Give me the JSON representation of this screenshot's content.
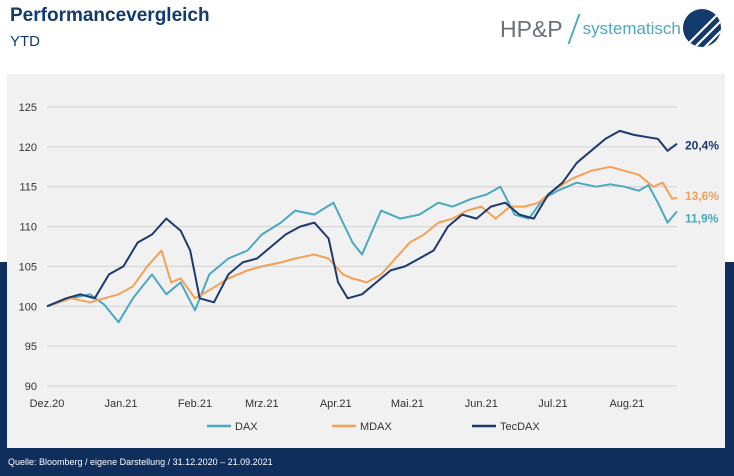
{
  "header": {
    "title": "Performancevergleich",
    "subtitle": "YTD",
    "brand_main": "HP&P",
    "brand_sub": "systematisch"
  },
  "source": "Quelle: Bloomberg / eigene Darstellung / 31.12.2020 – 21.09.2021",
  "colors": {
    "dax": "#4aa8c0",
    "mdax": "#f4a055",
    "tecdax": "#1c3a6e",
    "navy_band": "#0f2e5c",
    "title": "#123a6b"
  },
  "chart_data": {
    "type": "line",
    "ylim": [
      90,
      125
    ],
    "yticks": [
      90,
      95,
      100,
      105,
      110,
      115,
      120,
      125
    ],
    "xlim": [
      0,
      264
    ],
    "xticks": [
      {
        "label": "Dez.20",
        "pos": 0
      },
      {
        "label": "Jan.21",
        "pos": 31
      },
      {
        "label": "Feb.21",
        "pos": 62
      },
      {
        "label": "Mrz.21",
        "pos": 90
      },
      {
        "label": "Apr.21",
        "pos": 121
      },
      {
        "label": "Mai.21",
        "pos": 151
      },
      {
        "label": "Jun.21",
        "pos": 182
      },
      {
        "label": "Jul.21",
        "pos": 212
      },
      {
        "label": "Aug.21",
        "pos": 243
      }
    ],
    "grid": true,
    "legend_position": "bottom",
    "series": [
      {
        "name": "DAX",
        "color": "#4aa8c0",
        "end_label": "11,9%",
        "points": [
          [
            0,
            100
          ],
          [
            10,
            101
          ],
          [
            18,
            101.5
          ],
          [
            24,
            100.2
          ],
          [
            30,
            98
          ],
          [
            36,
            101
          ],
          [
            44,
            104
          ],
          [
            50,
            101.5
          ],
          [
            56,
            103
          ],
          [
            62,
            99.5
          ],
          [
            68,
            104
          ],
          [
            76,
            106
          ],
          [
            84,
            107
          ],
          [
            90,
            109
          ],
          [
            98,
            110.5
          ],
          [
            104,
            112
          ],
          [
            112,
            111.5
          ],
          [
            120,
            113
          ],
          [
            128,
            108
          ],
          [
            132,
            106.5
          ],
          [
            140,
            112
          ],
          [
            148,
            111
          ],
          [
            156,
            111.5
          ],
          [
            164,
            113
          ],
          [
            170,
            112.5
          ],
          [
            178,
            113.5
          ],
          [
            184,
            114
          ],
          [
            190,
            115
          ],
          [
            196,
            111.5
          ],
          [
            202,
            111
          ],
          [
            208,
            113.5
          ],
          [
            214,
            114.5
          ],
          [
            222,
            115.5
          ],
          [
            230,
            115
          ],
          [
            236,
            115.3
          ],
          [
            242,
            115
          ],
          [
            248,
            114.5
          ],
          [
            252,
            115.2
          ],
          [
            256,
            113
          ],
          [
            260,
            110.5
          ],
          [
            264,
            111.9
          ]
        ]
      },
      {
        "name": "MDAX",
        "color": "#f4a055",
        "end_label": "13,6%",
        "points": [
          [
            0,
            100
          ],
          [
            10,
            101
          ],
          [
            18,
            100.5
          ],
          [
            24,
            101
          ],
          [
            30,
            101.5
          ],
          [
            36,
            102.5
          ],
          [
            42,
            105
          ],
          [
            48,
            107
          ],
          [
            52,
            103
          ],
          [
            56,
            103.5
          ],
          [
            62,
            101
          ],
          [
            68,
            102
          ],
          [
            76,
            103.5
          ],
          [
            84,
            104.5
          ],
          [
            90,
            105
          ],
          [
            98,
            105.5
          ],
          [
            104,
            106
          ],
          [
            112,
            106.5
          ],
          [
            118,
            106
          ],
          [
            124,
            104
          ],
          [
            128,
            103.5
          ],
          [
            134,
            103
          ],
          [
            140,
            104
          ],
          [
            146,
            106
          ],
          [
            152,
            108
          ],
          [
            158,
            109
          ],
          [
            164,
            110.5
          ],
          [
            170,
            111
          ],
          [
            176,
            112
          ],
          [
            182,
            112.5
          ],
          [
            188,
            111
          ],
          [
            194,
            112.5
          ],
          [
            200,
            112.5
          ],
          [
            206,
            113
          ],
          [
            212,
            114.5
          ],
          [
            220,
            116
          ],
          [
            228,
            117
          ],
          [
            236,
            117.5
          ],
          [
            242,
            117
          ],
          [
            248,
            116.5
          ],
          [
            254,
            115
          ],
          [
            258,
            115.5
          ],
          [
            262,
            113.5
          ],
          [
            264,
            113.6
          ]
        ]
      },
      {
        "name": "TecDAX",
        "color": "#1c3a6e",
        "end_label": "20,4%",
        "points": [
          [
            0,
            100
          ],
          [
            8,
            101
          ],
          [
            14,
            101.5
          ],
          [
            20,
            101
          ],
          [
            26,
            104
          ],
          [
            32,
            105
          ],
          [
            38,
            108
          ],
          [
            44,
            109
          ],
          [
            50,
            111
          ],
          [
            56,
            109.5
          ],
          [
            60,
            107
          ],
          [
            64,
            101
          ],
          [
            70,
            100.5
          ],
          [
            76,
            104
          ],
          [
            82,
            105.5
          ],
          [
            88,
            106
          ],
          [
            94,
            107.5
          ],
          [
            100,
            109
          ],
          [
            106,
            110
          ],
          [
            112,
            110.5
          ],
          [
            118,
            108.5
          ],
          [
            122,
            103
          ],
          [
            126,
            101
          ],
          [
            132,
            101.5
          ],
          [
            138,
            103
          ],
          [
            144,
            104.5
          ],
          [
            150,
            105
          ],
          [
            156,
            106
          ],
          [
            162,
            107
          ],
          [
            168,
            110
          ],
          [
            174,
            111.5
          ],
          [
            180,
            111
          ],
          [
            186,
            112.5
          ],
          [
            192,
            113
          ],
          [
            198,
            111.5
          ],
          [
            204,
            111
          ],
          [
            210,
            114
          ],
          [
            216,
            115.5
          ],
          [
            222,
            118
          ],
          [
            228,
            119.5
          ],
          [
            234,
            121
          ],
          [
            240,
            122
          ],
          [
            246,
            121.5
          ],
          [
            252,
            121.2
          ],
          [
            256,
            121
          ],
          [
            260,
            119.5
          ],
          [
            264,
            120.4
          ]
        ]
      }
    ]
  }
}
